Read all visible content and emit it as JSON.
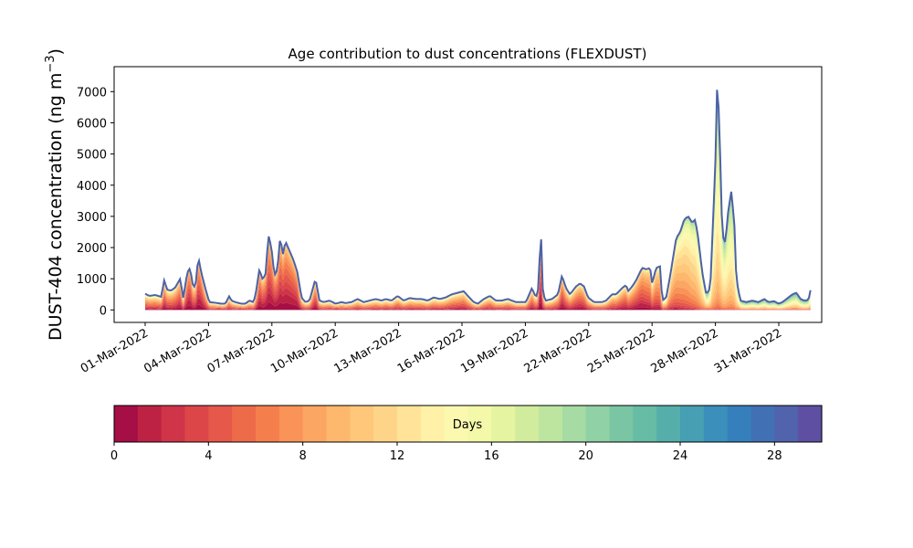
{
  "chart_data": {
    "type": "area",
    "stacked": true,
    "title": "Age contribution to dust concentrations (FLEXDUST)",
    "ylabel_main": "DUST-404 concentration (ng m",
    "ylabel_sup": "−3",
    "ylabel_close": ")",
    "xlabel": "",
    "ylim": [
      -400,
      7800
    ],
    "yticks": [
      0,
      1000,
      2000,
      3000,
      4000,
      5000,
      6000,
      7000
    ],
    "x_start_day": 1,
    "x_end_day": 32.2,
    "xticks": [
      {
        "day": 1,
        "label": "01-Mar-2022"
      },
      {
        "day": 4,
        "label": "04-Mar-2022"
      },
      {
        "day": 7,
        "label": "07-Mar-2022"
      },
      {
        "day": 10,
        "label": "10-Mar-2022"
      },
      {
        "day": 13,
        "label": "13-Mar-2022"
      },
      {
        "day": 16,
        "label": "16-Mar-2022"
      },
      {
        "day": 19,
        "label": "19-Mar-2022"
      },
      {
        "day": 22,
        "label": "22-Mar-2022"
      },
      {
        "day": 25,
        "label": "25-Mar-2022"
      },
      {
        "day": 28,
        "label": "28-Mar-2022"
      },
      {
        "day": 31,
        "label": "31-Mar-2022"
      }
    ],
    "total_concentration": [
      [
        1.0,
        520
      ],
      [
        1.2,
        450
      ],
      [
        1.5,
        480
      ],
      [
        1.8,
        420
      ],
      [
        1.95,
        950
      ],
      [
        2.1,
        650
      ],
      [
        2.3,
        620
      ],
      [
        2.5,
        720
      ],
      [
        2.75,
        1000
      ],
      [
        2.9,
        380
      ],
      [
        3.1,
        1200
      ],
      [
        3.25,
        1350
      ],
      [
        3.35,
        850
      ],
      [
        3.5,
        700
      ],
      [
        3.65,
        1700
      ],
      [
        3.8,
        1200
      ],
      [
        4.0,
        700
      ],
      [
        4.2,
        250
      ],
      [
        4.5,
        230
      ],
      [
        4.8,
        200
      ],
      [
        5.0,
        200
      ],
      [
        5.2,
        450
      ],
      [
        5.3,
        300
      ],
      [
        5.5,
        250
      ],
      [
        5.8,
        200
      ],
      [
        6.0,
        200
      ],
      [
        6.2,
        300
      ],
      [
        6.4,
        250
      ],
      [
        6.5,
        450
      ],
      [
        6.7,
        1300
      ],
      [
        6.85,
        1000
      ],
      [
        7.0,
        1100
      ],
      [
        7.15,
        2400
      ],
      [
        7.3,
        2000
      ],
      [
        7.45,
        1100
      ],
      [
        7.6,
        1300
      ],
      [
        7.75,
        2450
      ],
      [
        7.85,
        1700
      ],
      [
        8.0,
        2200
      ],
      [
        8.2,
        1900
      ],
      [
        8.4,
        1600
      ],
      [
        8.6,
        1200
      ],
      [
        8.8,
        400
      ],
      [
        9.0,
        250
      ],
      [
        9.2,
        300
      ],
      [
        9.5,
        1000
      ],
      [
        9.7,
        300
      ],
      [
        9.9,
        250
      ],
      [
        10.2,
        300
      ],
      [
        10.5,
        200
      ],
      [
        10.8,
        250
      ],
      [
        11.0,
        220
      ],
      [
        11.3,
        250
      ],
      [
        11.6,
        350
      ],
      [
        11.9,
        250
      ],
      [
        12.2,
        300
      ],
      [
        12.5,
        350
      ],
      [
        12.8,
        300
      ],
      [
        13.0,
        350
      ],
      [
        13.3,
        300
      ],
      [
        13.6,
        450
      ],
      [
        13.9,
        300
      ],
      [
        14.2,
        380
      ],
      [
        14.5,
        350
      ],
      [
        14.8,
        350
      ],
      [
        15.1,
        300
      ],
      [
        15.4,
        400
      ],
      [
        15.7,
        350
      ],
      [
        16.0,
        400
      ],
      [
        16.3,
        500
      ],
      [
        16.6,
        550
      ],
      [
        16.9,
        600
      ],
      [
        17.1,
        450
      ],
      [
        17.4,
        250
      ],
      [
        17.6,
        200
      ],
      [
        17.9,
        350
      ],
      [
        18.2,
        450
      ],
      [
        18.5,
        300
      ],
      [
        18.8,
        300
      ],
      [
        19.1,
        350
      ],
      [
        19.5,
        250
      ],
      [
        20.0,
        250
      ],
      [
        20.3,
        700
      ],
      [
        20.5,
        400
      ],
      [
        20.6,
        600
      ],
      [
        20.75,
        2500
      ],
      [
        20.85,
        500
      ],
      [
        21.0,
        300
      ],
      [
        21.3,
        350
      ],
      [
        21.6,
        500
      ],
      [
        21.8,
        1100
      ],
      [
        22.0,
        700
      ],
      [
        22.2,
        500
      ],
      [
        22.5,
        750
      ],
      [
        22.7,
        850
      ],
      [
        22.9,
        750
      ],
      [
        23.1,
        400
      ],
      [
        23.4,
        250
      ],
      [
        23.8,
        250
      ],
      [
        24.0,
        300
      ],
      [
        24.3,
        500
      ],
      [
        24.5,
        500
      ],
      [
        24.8,
        700
      ],
      [
        25.0,
        800
      ],
      [
        25.1,
        600
      ],
      [
        25.3,
        750
      ],
      [
        25.5,
        950
      ],
      [
        25.8,
        1350
      ],
      [
        26.0,
        1300
      ],
      [
        26.2,
        1350
      ],
      [
        26.3,
        850
      ],
      [
        26.5,
        1350
      ],
      [
        26.7,
        1400
      ],
      [
        26.8,
        300
      ],
      [
        27.0,
        400
      ],
      [
        27.2,
        1100
      ],
      [
        27.5,
        2300
      ],
      [
        27.7,
        2500
      ],
      [
        27.9,
        2900
      ],
      [
        28.1,
        3000
      ],
      [
        28.3,
        2800
      ],
      [
        28.45,
        2900
      ],
      [
        28.6,
        2300
      ],
      [
        28.8,
        1200
      ],
      [
        29.0,
        500
      ],
      [
        29.2,
        700
      ],
      [
        29.45,
        4600
      ],
      [
        29.55,
        7450
      ],
      [
        29.65,
        6000
      ],
      [
        29.8,
        2400
      ],
      [
        29.95,
        2150
      ],
      [
        30.1,
        3200
      ],
      [
        30.25,
        3800
      ],
      [
        30.4,
        2800
      ],
      [
        30.5,
        1000
      ],
      [
        30.7,
        300
      ],
      [
        31.0,
        250
      ],
      [
        31.3,
        300
      ],
      [
        31.6,
        250
      ],
      [
        31.9,
        350
      ],
      [
        32.1,
        250
      ],
      [
        32.4,
        280
      ],
      [
        32.6,
        200
      ],
      [
        32.8,
        250
      ],
      [
        33.0,
        350
      ],
      [
        33.3,
        500
      ],
      [
        33.5,
        550
      ],
      [
        33.7,
        350
      ],
      [
        33.9,
        300
      ],
      [
        34.1,
        320
      ],
      [
        34.2,
        630
      ]
    ],
    "colorbar": {
      "label": "Days",
      "range": [
        0,
        30
      ],
      "ticks": [
        0,
        4,
        8,
        12,
        16,
        20,
        24,
        28
      ],
      "colors": [
        "#a50f45",
        "#bd2244",
        "#cf3448",
        "#dd4649",
        "#e5584a",
        "#ee6b4a",
        "#f57f4c",
        "#f99357",
        "#fca663",
        "#fdb86d",
        "#fec77a",
        "#fed588",
        "#ffe398",
        "#fff1a8",
        "#fbf8b0",
        "#f3f9a8",
        "#e5f4a0",
        "#d2ec9d",
        "#bde59f",
        "#a6dba3",
        "#90d1a5",
        "#7ac6a4",
        "#66bca5",
        "#55aea9",
        "#469fb2",
        "#3a8fbb",
        "#3580bc",
        "#4270b5",
        "#5163ad",
        "#5e4fa2"
      ]
    }
  }
}
